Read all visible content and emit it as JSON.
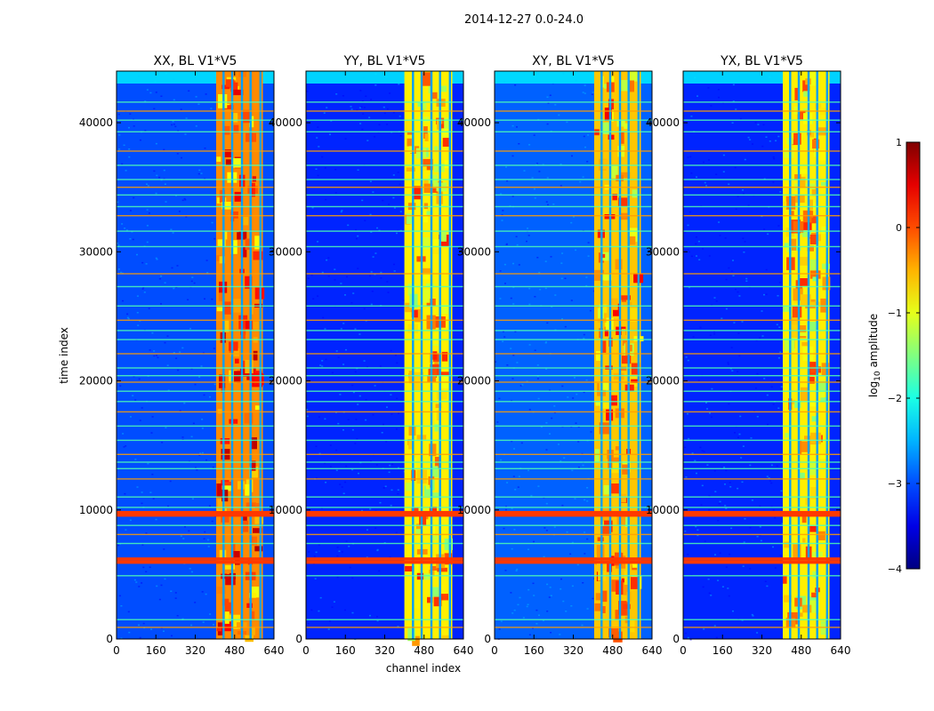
{
  "figure_title": "2014-12-27 0.0-24.0",
  "chart_data": {
    "type": "heatmap",
    "suptitle": "2014-12-27 0.0-24.0",
    "shared_ylabel": "time index",
    "shared_xlabel": "channel index",
    "xlim": [
      0,
      640
    ],
    "ylim": [
      0,
      44000
    ],
    "x_ticks": [
      0,
      160,
      320,
      480,
      640
    ],
    "y_ticks": [
      0,
      10000,
      20000,
      30000,
      40000
    ],
    "x_tick_labels": [
      "0",
      "160",
      "320",
      "480",
      "640"
    ],
    "y_tick_labels": [
      "0",
      "10000",
      "20000",
      "30000",
      "40000"
    ],
    "value_quantity": "log10 amplitude",
    "panels": [
      {
        "title": "XX, BL V1*V5",
        "band_start": 405,
        "band_end": 595,
        "background_level": -3.0,
        "band_level": -0.3
      },
      {
        "title": "YY, BL V1*V5",
        "band_start": 400,
        "band_end": 595,
        "background_level": -3.2,
        "band_level": -0.8
      },
      {
        "title": "XY, BL V1*V5",
        "band_start": 405,
        "band_end": 595,
        "background_level": -2.9,
        "band_level": -0.6
      },
      {
        "title": "YX, BL V1*V5",
        "band_start": 405,
        "band_end": 595,
        "background_level": -3.2,
        "band_level": -0.8
      }
    ],
    "band_gap_channels": [
      435,
      470,
      510,
      545,
      585
    ],
    "rfi_time_rows": [
      900,
      1500,
      4900,
      5950,
      6200,
      7400,
      8100,
      8800,
      9600,
      9800,
      10200,
      11000,
      12400,
      13200,
      13700,
      14300,
      15400,
      16500,
      17600,
      18400,
      19200,
      19900,
      20400,
      21000,
      22100,
      23200,
      23900,
      24700,
      25800,
      27300,
      28300,
      30400,
      31600,
      32800,
      33500,
      34400,
      35000,
      35600,
      36700,
      37800,
      39300,
      40200,
      40900,
      41600
    ],
    "colorbar": {
      "label": "log10 amplitude",
      "label_main": "log",
      "label_sub": "10",
      "label_rest": " amplitude",
      "range": [
        -4,
        1
      ],
      "ticks": [
        1,
        0,
        -1,
        -2,
        -3,
        -4
      ],
      "tick_labels": [
        "1",
        "0",
        "−1",
        "−2",
        "−3",
        "−4"
      ],
      "colormap": "jet"
    }
  }
}
